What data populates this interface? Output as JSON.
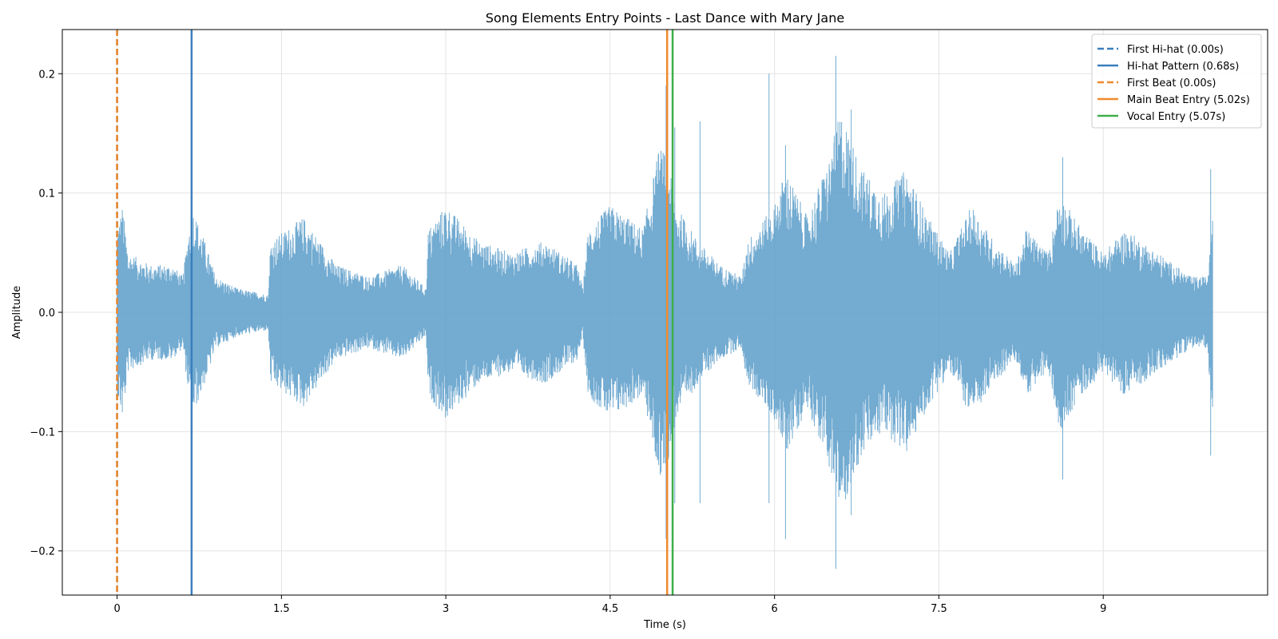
{
  "chart_data": {
    "type": "line",
    "title": "Song Elements Entry Points - Last Dance with Mary Jane",
    "xlabel": "Time (s)",
    "ylabel": "Amplitude",
    "xlim": [
      -0.5,
      10.5
    ],
    "ylim": [
      -0.237,
      0.237
    ],
    "xticks": [
      0,
      1.5,
      3,
      4.5,
      6,
      7.5,
      9
    ],
    "xtick_labels": [
      "0",
      "1.5",
      "3",
      "4.5",
      "6",
      "7.5",
      "9"
    ],
    "yticks": [
      -0.2,
      -0.1,
      0.0,
      0.1,
      0.2
    ],
    "ytick_labels": [
      "−0.2",
      "−0.1",
      "0.0",
      "0.1",
      "0.2"
    ],
    "grid": true,
    "legend_position": "top-right",
    "waveform": {
      "color": "#5b9cc9",
      "duration": 10.0,
      "envelope": [
        [
          0.0,
          0.07
        ],
        [
          0.05,
          0.09
        ],
        [
          0.1,
          0.05
        ],
        [
          0.3,
          0.04
        ],
        [
          0.5,
          0.04
        ],
        [
          0.6,
          0.03
        ],
        [
          0.68,
          0.09
        ],
        [
          0.8,
          0.06
        ],
        [
          0.9,
          0.03
        ],
        [
          1.1,
          0.02
        ],
        [
          1.38,
          0.015
        ],
        [
          1.4,
          0.06
        ],
        [
          1.7,
          0.08
        ],
        [
          2.0,
          0.04
        ],
        [
          2.3,
          0.03
        ],
        [
          2.6,
          0.04
        ],
        [
          2.82,
          0.02
        ],
        [
          2.84,
          0.07
        ],
        [
          3.0,
          0.09
        ],
        [
          3.3,
          0.06
        ],
        [
          3.6,
          0.05
        ],
        [
          3.9,
          0.06
        ],
        [
          4.2,
          0.04
        ],
        [
          4.25,
          0.02
        ],
        [
          4.3,
          0.07
        ],
        [
          4.5,
          0.09
        ],
        [
          4.8,
          0.07
        ],
        [
          4.95,
          0.14
        ],
        [
          5.02,
          0.13
        ],
        [
          5.1,
          0.09
        ],
        [
          5.3,
          0.06
        ],
        [
          5.5,
          0.04
        ],
        [
          5.7,
          0.03
        ],
        [
          5.75,
          0.06
        ],
        [
          6.0,
          0.09
        ],
        [
          6.1,
          0.12
        ],
        [
          6.3,
          0.08
        ],
        [
          6.5,
          0.13
        ],
        [
          6.6,
          0.17
        ],
        [
          6.8,
          0.12
        ],
        [
          7.0,
          0.1
        ],
        [
          7.2,
          0.12
        ],
        [
          7.4,
          0.08
        ],
        [
          7.6,
          0.05
        ],
        [
          7.8,
          0.09
        ],
        [
          8.0,
          0.06
        ],
        [
          8.2,
          0.04
        ],
        [
          8.3,
          0.07
        ],
        [
          8.5,
          0.05
        ],
        [
          8.6,
          0.1
        ],
        [
          8.8,
          0.07
        ],
        [
          9.0,
          0.05
        ],
        [
          9.2,
          0.07
        ],
        [
          9.5,
          0.05
        ],
        [
          9.8,
          0.03
        ],
        [
          9.95,
          0.03
        ],
        [
          10.0,
          0.1
        ]
      ],
      "spikes": [
        [
          5.01,
          0.19,
          -0.19
        ],
        [
          5.09,
          0.155,
          -0.16
        ],
        [
          5.32,
          0.16,
          -0.16
        ],
        [
          5.95,
          0.2,
          -0.16
        ],
        [
          6.1,
          0.14,
          -0.19
        ],
        [
          6.56,
          0.215,
          -0.215
        ],
        [
          6.7,
          0.17,
          -0.17
        ],
        [
          8.63,
          0.13,
          -0.14
        ],
        [
          9.98,
          0.12,
          -0.12
        ]
      ]
    },
    "series": [
      {
        "name": "First Hi-hat (0.00s)",
        "x": 0.0,
        "color": "#3a7fbd",
        "dash": true
      },
      {
        "name": "Hi-hat Pattern (0.68s)",
        "x": 0.68,
        "color": "#3a7fbd",
        "dash": false
      },
      {
        "name": "First Beat (0.00s)",
        "x": 0.0,
        "color": "#f08a2e",
        "dash": true
      },
      {
        "name": "Main Beat Entry (5.02s)",
        "x": 5.02,
        "color": "#f08a2e",
        "dash": false
      },
      {
        "name": "Vocal Entry (5.07s)",
        "x": 5.07,
        "color": "#3fae4a",
        "dash": false
      }
    ]
  }
}
